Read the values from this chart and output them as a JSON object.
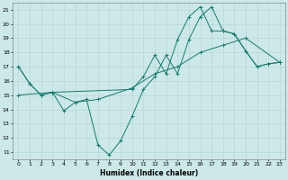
{
  "xlabel": "Humidex (Indice chaleur)",
  "xlim": [
    -0.5,
    23.5
  ],
  "ylim": [
    10.5,
    21.5
  ],
  "yticks": [
    11,
    12,
    13,
    14,
    15,
    16,
    17,
    18,
    19,
    20,
    21
  ],
  "xticks": [
    0,
    1,
    2,
    3,
    4,
    5,
    6,
    7,
    8,
    9,
    10,
    11,
    12,
    13,
    14,
    15,
    16,
    17,
    18,
    19,
    20,
    21,
    22,
    23
  ],
  "bg_color": "#cce8e8",
  "grid_color": "#aad4d4",
  "line_color": "#1a7a6e",
  "line1_x": [
    0,
    1,
    2,
    3,
    4,
    5,
    6,
    7,
    8,
    9,
    10,
    11,
    12,
    13,
    14,
    15,
    16,
    17,
    18,
    19,
    20,
    21,
    22,
    23
  ],
  "line1_y": [
    17.0,
    15.8,
    15.0,
    15.2,
    13.9,
    14.5,
    14.7,
    11.5,
    10.8,
    11.8,
    13.5,
    15.4,
    16.3,
    17.8,
    16.5,
    18.9,
    20.5,
    21.2,
    19.5,
    19.3,
    18.1,
    17.0,
    17.2,
    17.3
  ],
  "line2_x": [
    0,
    1,
    2,
    3,
    10,
    11,
    12,
    13,
    14,
    15,
    16,
    17,
    18,
    19,
    20,
    21,
    22,
    23
  ],
  "line2_y": [
    17.0,
    15.8,
    15.0,
    15.2,
    15.4,
    16.3,
    17.8,
    16.5,
    18.9,
    20.5,
    21.2,
    19.5,
    19.5,
    19.3,
    18.1,
    17.0,
    17.2,
    17.3
  ],
  "line3_x": [
    0,
    3,
    5,
    7,
    10,
    12,
    14,
    16,
    18,
    20,
    23
  ],
  "line3_y": [
    15.0,
    15.2,
    14.5,
    14.7,
    15.5,
    16.5,
    17.0,
    18.0,
    18.5,
    19.0,
    17.3
  ]
}
